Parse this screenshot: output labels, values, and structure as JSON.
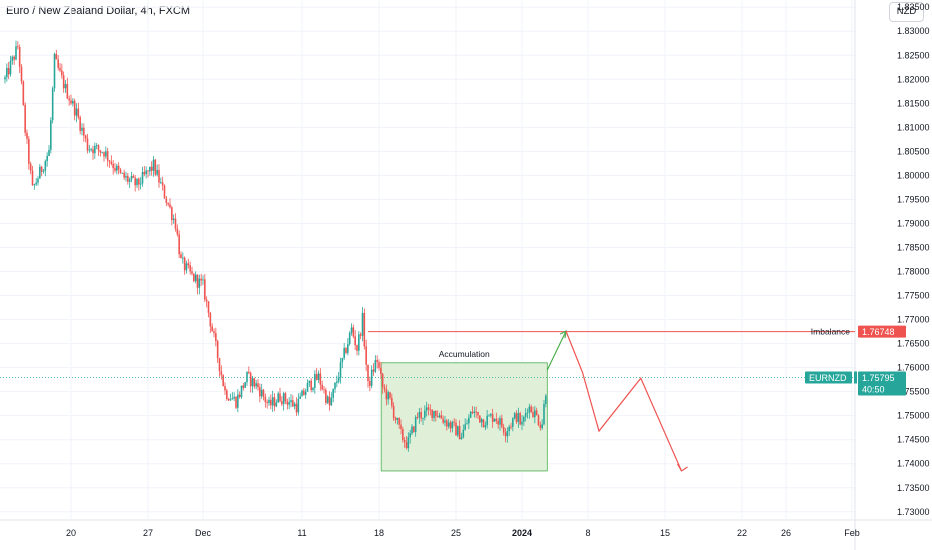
{
  "header": {
    "symbol_title": "Euro / New Zealand Dollar, 4h, FXCM",
    "currency_button": "NZD"
  },
  "colors": {
    "up_candle": "#26a69a",
    "down_candle": "#ef5350",
    "accumulation_fill": "#e0f0d8",
    "accumulation_border": "#4caf50",
    "projection_green": "#4caf50",
    "projection_red": "#ef5350",
    "imbalance_line": "#ef5350",
    "price_line": "#26a69a"
  },
  "chart_data": {
    "type": "candlestick",
    "symbol": "EURNZD",
    "timeframe": "4h",
    "ylim": [
      1.7285,
      1.8365
    ],
    "y_ticks": [
      "1.83500",
      "1.83000",
      "1.82500",
      "1.82000",
      "1.81500",
      "1.81000",
      "1.80500",
      "1.80000",
      "1.79500",
      "1.79000",
      "1.78500",
      "1.78000",
      "1.77500",
      "1.77000",
      "1.76500",
      "1.76000",
      "1.75500",
      "1.75000",
      "1.74500",
      "1.74000",
      "1.73500",
      "1.73000"
    ],
    "x_ticks": [
      {
        "label": "20",
        "day": 0
      },
      {
        "label": "27",
        "day": 7
      },
      {
        "label": "Dec",
        "day": 12
      },
      {
        "label": "11",
        "day": 21
      },
      {
        "label": "18",
        "day": 28
      },
      {
        "label": "25",
        "day": 35
      },
      {
        "label": "2024",
        "day": 41,
        "bold": true
      },
      {
        "label": "8",
        "day": 47
      },
      {
        "label": "15",
        "day": 54
      },
      {
        "label": "22",
        "day": 61
      },
      {
        "label": "26",
        "day": 65
      },
      {
        "label": "Feb",
        "day": 71
      }
    ],
    "waypoints": [
      [
        -6.0,
        1.82
      ],
      [
        -4.8,
        1.827
      ],
      [
        -4.2,
        1.81
      ],
      [
        -3.5,
        1.797
      ],
      [
        -2.0,
        1.805
      ],
      [
        -1.5,
        1.824
      ],
      [
        -0.5,
        1.818
      ],
      [
        0.5,
        1.813
      ],
      [
        1.5,
        1.806
      ],
      [
        3.0,
        1.805
      ],
      [
        4.5,
        1.8
      ],
      [
        6.0,
        1.798
      ],
      [
        7.5,
        1.802
      ],
      [
        8.5,
        1.796
      ],
      [
        9.5,
        1.79
      ],
      [
        10.0,
        1.782
      ],
      [
        11.0,
        1.779
      ],
      [
        12.0,
        1.777
      ],
      [
        13.0,
        1.766
      ],
      [
        14.0,
        1.755
      ],
      [
        15.0,
        1.753
      ],
      [
        16.0,
        1.758
      ],
      [
        17.0,
        1.756
      ],
      [
        18.0,
        1.752
      ],
      [
        19.0,
        1.754
      ],
      [
        20.5,
        1.752
      ],
      [
        21.5,
        1.756
      ],
      [
        22.5,
        1.758
      ],
      [
        23.5,
        1.752
      ],
      [
        24.5,
        1.76
      ],
      [
        25.5,
        1.768
      ],
      [
        26.0,
        1.764
      ],
      [
        26.5,
        1.77
      ],
      [
        27.0,
        1.756
      ],
      [
        27.8,
        1.762
      ],
      [
        28.3,
        1.756
      ],
      [
        29.0,
        1.753
      ],
      [
        30.0,
        1.746
      ],
      [
        30.6,
        1.744
      ],
      [
        31.5,
        1.75
      ],
      [
        33.0,
        1.751
      ],
      [
        34.5,
        1.748
      ],
      [
        35.5,
        1.746
      ],
      [
        36.5,
        1.751
      ],
      [
        37.5,
        1.749
      ],
      [
        38.5,
        1.75
      ],
      [
        39.5,
        1.747
      ],
      [
        40.5,
        1.75
      ],
      [
        41.0,
        1.748
      ],
      [
        41.5,
        1.752
      ],
      [
        42.0,
        1.751
      ],
      [
        42.8,
        1.748
      ],
      [
        43.3,
        1.758
      ]
    ],
    "last_price": "1.75795",
    "countdown": "40:50",
    "annotations": {
      "accumulation_label": "Accumulation",
      "accumulation_box": {
        "day_start": 28.2,
        "day_end": 43.3,
        "price_low": 1.7385,
        "price_high": 1.761
      },
      "imbalance_label": "Imbalance",
      "imbalance_price": "1.76748",
      "imbalance_value": 1.76748,
      "imbalance_start_day": 27.0,
      "projection_up": [
        [
          43.3,
          1.7595
        ],
        [
          45.0,
          1.7676
        ]
      ],
      "projection_down": [
        [
          45.0,
          1.7676
        ],
        [
          46.5,
          1.759
        ],
        [
          48.0,
          1.7468
        ],
        [
          51.8,
          1.7578
        ],
        [
          55.5,
          1.7385
        ]
      ]
    }
  },
  "price_scale": {
    "symbol_label": "EURNZD",
    "last_price": "1.75795",
    "countdown": "40:50",
    "imbalance_label": "Imbalance",
    "imbalance_price": "1.76748"
  }
}
